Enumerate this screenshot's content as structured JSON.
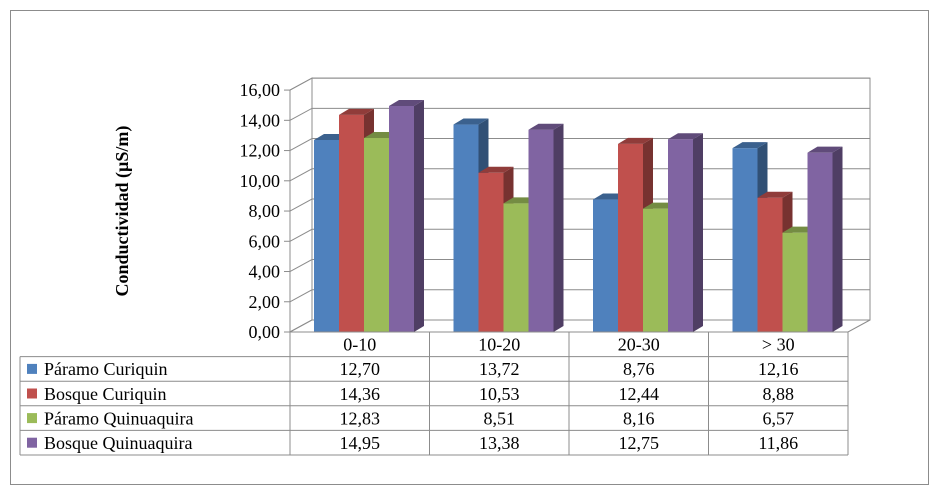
{
  "chart_data": {
    "type": "bar",
    "ylabel": "Conductividad (µS/m)",
    "ylim": [
      0,
      16
    ],
    "yticks": [
      "0,00",
      "2,00",
      "4,00",
      "6,00",
      "8,00",
      "10,00",
      "12,00",
      "14,00",
      "16,00"
    ],
    "categories": [
      "0-10",
      "10-20",
      "20-30",
      "> 30"
    ],
    "grid": true,
    "legend": "data-table",
    "series": [
      {
        "name": "Páramo Curiquin",
        "values": [
          12.7,
          13.72,
          8.76,
          12.16
        ],
        "labels": [
          "12,70",
          "13,72",
          "8,76",
          "12,16"
        ],
        "color": "#4f81bd"
      },
      {
        "name": "Bosque Curiquin",
        "values": [
          14.36,
          10.53,
          12.44,
          8.88
        ],
        "labels": [
          "14,36",
          "10,53",
          "12,44",
          "8,88"
        ],
        "color": "#c0504d"
      },
      {
        "name": "Páramo Quinuaquira",
        "values": [
          12.83,
          8.51,
          8.16,
          6.57
        ],
        "labels": [
          "12,83",
          "8,51",
          "8,16",
          "6,57"
        ],
        "color": "#9bbb59"
      },
      {
        "name": "Bosque Quinuaquira",
        "values": [
          14.95,
          13.38,
          12.75,
          11.86
        ],
        "labels": [
          "14,95",
          "13,38",
          "12,75",
          "11,86"
        ],
        "color": "#8064a2"
      }
    ]
  }
}
